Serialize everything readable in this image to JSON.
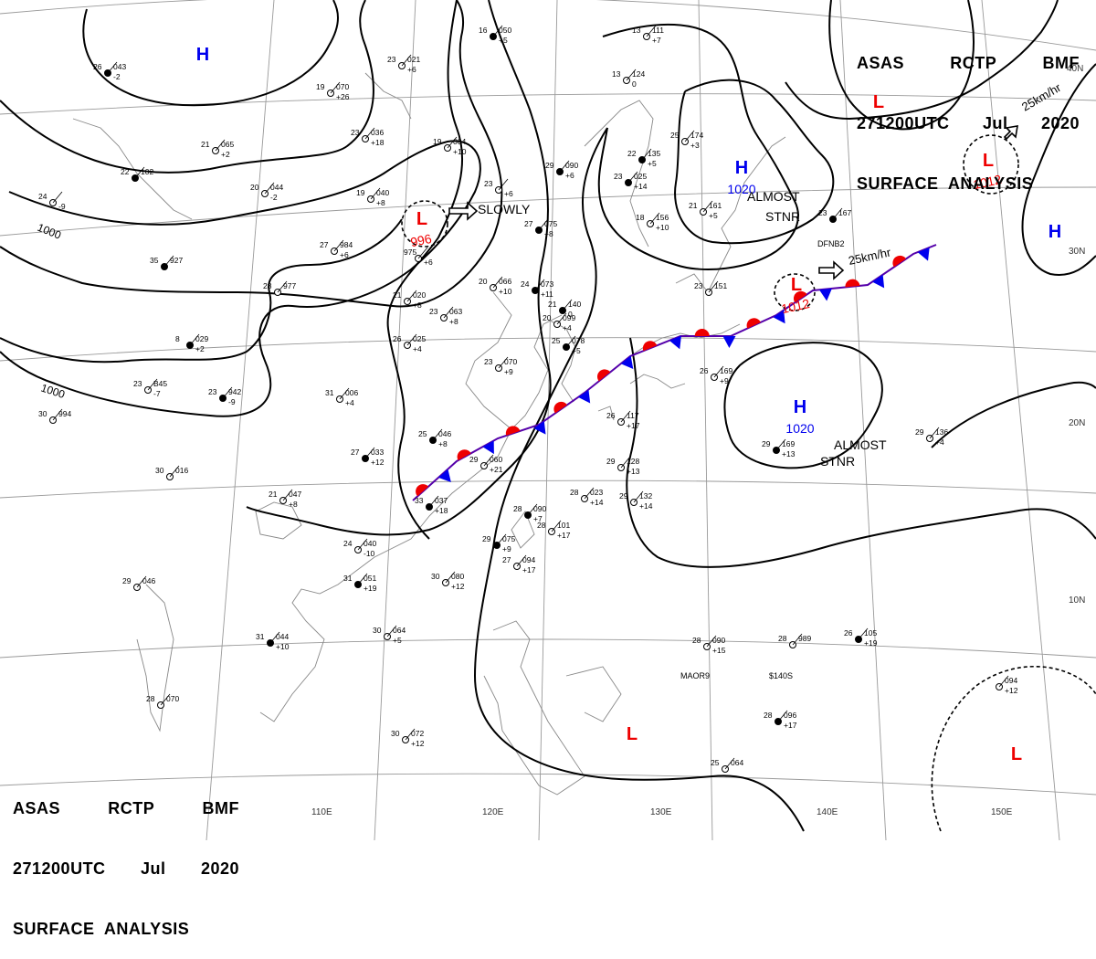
{
  "header_top": {
    "line1": [
      "ASAS",
      "RCTP",
      "BMF"
    ],
    "line2": [
      "271200UTC",
      "Jul",
      "2020"
    ],
    "line3": "SURFACE  ANALYSIS"
  },
  "header_bottom": {
    "line1": [
      "ASAS",
      "RCTP",
      "BMF"
    ],
    "line2": [
      "271200UTC",
      "Jul",
      "2020"
    ],
    "line3": "SURFACE  ANALYSIS"
  },
  "colors": {
    "high": "#0000ee",
    "low": "#ee0000",
    "isobar": "#000000",
    "grid": "#999999",
    "coast": "#888888"
  },
  "lon_labels": [
    "110E",
    "120E",
    "130E",
    "140E",
    "150E"
  ],
  "lat_labels": [
    "40N",
    "30N",
    "20N",
    "10N"
  ],
  "isobar_labels": [
    "1000",
    "1000"
  ],
  "centers": [
    {
      "type": "H",
      "pressure": ""
    },
    {
      "type": "L",
      "pressure": ""
    },
    {
      "type": "L",
      "pressure": "1012"
    },
    {
      "type": "L",
      "pressure": "996"
    },
    {
      "type": "H",
      "pressure": "1020"
    },
    {
      "type": "H",
      "pressure": ""
    },
    {
      "type": "L",
      "pressure": "1012"
    },
    {
      "type": "H",
      "pressure": "1020"
    },
    {
      "type": "L",
      "pressure": ""
    },
    {
      "type": "L",
      "pressure": ""
    }
  ],
  "annotations": {
    "slowly": "SLOWLY",
    "almost_stnr_1": [
      "ALMOST",
      "STNR"
    ],
    "almost_stnr_2": [
      "ALMOST",
      "STNR"
    ],
    "speed_1": "25km/hr",
    "speed_2": "25km/hr",
    "dfnb2": "DFNB2",
    "maor9": "MAOR9",
    "s140s": "$140S"
  },
  "stations": [
    {
      "t": "26",
      "p": "043",
      "c": "-2"
    },
    {
      "t": "19",
      "p": "070",
      "c": "+26"
    },
    {
      "t": "23",
      "p": "021",
      "c": "+6"
    },
    {
      "t": "16",
      "p": "050",
      "c": "+5"
    },
    {
      "t": "13",
      "p": "111",
      "c": "+7"
    },
    {
      "t": "21",
      "p": "065",
      "c": "+2"
    },
    {
      "t": "22",
      "p": "102",
      "c": ""
    },
    {
      "t": "23",
      "p": "036",
      "c": "+18"
    },
    {
      "t": "19",
      "p": "004",
      "c": "+10"
    },
    {
      "t": "29",
      "p": "090",
      "c": "+6"
    },
    {
      "t": "13",
      "p": "124",
      "c": "0"
    },
    {
      "t": "25",
      "p": "174",
      "c": "+3"
    },
    {
      "t": "22",
      "p": "135",
      "c": "+5"
    },
    {
      "t": "20",
      "p": "044",
      "c": "-2"
    },
    {
      "t": "19",
      "p": "040",
      "c": "+8"
    },
    {
      "t": "23",
      "p": "025",
      "c": "+14"
    },
    {
      "t": "23",
      "p": "",
      "c": "+6"
    },
    {
      "t": "24",
      "p": "",
      "c": "-9"
    },
    {
      "t": "27",
      "p": "075",
      "c": "+8"
    },
    {
      "t": "18",
      "p": "156",
      "c": "+10"
    },
    {
      "t": "21",
      "p": "161",
      "c": "+5"
    },
    {
      "t": "23",
      "p": "167",
      "c": ""
    },
    {
      "t": "27",
      "p": "984",
      "c": "+6"
    },
    {
      "t": "975",
      "p": "",
      "c": "+6"
    },
    {
      "t": "35",
      "p": "927",
      "c": ""
    },
    {
      "t": "28",
      "p": "977",
      "c": ""
    },
    {
      "t": "20",
      "p": "066",
      "c": "+10"
    },
    {
      "t": "24",
      "p": "073",
      "c": "+11"
    },
    {
      "t": "21",
      "p": "020",
      "c": "+8"
    },
    {
      "t": "23",
      "p": "063",
      "c": "+8"
    },
    {
      "t": "21",
      "p": "140",
      "c": "0"
    },
    {
      "t": "23",
      "p": "151",
      "c": ""
    },
    {
      "t": "20",
      "p": "099",
      "c": "+4"
    },
    {
      "t": "8",
      "p": "029",
      "c": "+2"
    },
    {
      "t": "26",
      "p": "025",
      "c": "+4"
    },
    {
      "t": "23",
      "p": "070",
      "c": "+9"
    },
    {
      "t": "25",
      "p": "078",
      "c": "+5"
    },
    {
      "t": "26",
      "p": "169",
      "c": "+9"
    },
    {
      "t": "23",
      "p": "B45",
      "c": "-7"
    },
    {
      "t": "23",
      "p": "942",
      "c": "-9"
    },
    {
      "t": "31",
      "p": "006",
      "c": "+4"
    },
    {
      "t": "30",
      "p": "994",
      "c": ""
    },
    {
      "t": "25",
      "p": "046",
      "c": "+8"
    },
    {
      "t": "26",
      "p": "117",
      "c": "+17"
    },
    {
      "t": "29",
      "p": "136",
      "c": "+4"
    },
    {
      "t": "27",
      "p": "033",
      "c": "+12"
    },
    {
      "t": "29",
      "p": "060",
      "c": "+21"
    },
    {
      "t": "29",
      "p": "128",
      "c": "+13"
    },
    {
      "t": "29",
      "p": "169",
      "c": "+13"
    },
    {
      "t": "30",
      "p": "016",
      "c": ""
    },
    {
      "t": "21",
      "p": "047",
      "c": "+8"
    },
    {
      "t": "33",
      "p": "037",
      "c": "+18"
    },
    {
      "t": "28",
      "p": "023",
      "c": "+14"
    },
    {
      "t": "29",
      "p": "132",
      "c": "+14"
    },
    {
      "t": "28",
      "p": "090",
      "c": "+7"
    },
    {
      "t": "28",
      "p": "101",
      "c": "+17"
    },
    {
      "t": "24",
      "p": "040",
      "c": "-10"
    },
    {
      "t": "29",
      "p": "075",
      "c": "+9"
    },
    {
      "t": "27",
      "p": "094",
      "c": "+17"
    },
    {
      "t": "29",
      "p": "046",
      "c": ""
    },
    {
      "t": "31",
      "p": "051",
      "c": "+19"
    },
    {
      "t": "30",
      "p": "080",
      "c": "+12"
    },
    {
      "t": "30",
      "p": "064",
      "c": "+5"
    },
    {
      "t": "31",
      "p": "044",
      "c": "+10"
    },
    {
      "t": "28",
      "p": "090",
      "c": "+15"
    },
    {
      "t": "28",
      "p": "989",
      "c": ""
    },
    {
      "t": "26",
      "p": "105",
      "c": "+19"
    },
    {
      "t": "28",
      "p": "070",
      "c": ""
    },
    {
      "t": "30",
      "p": "072",
      "c": "+12"
    },
    {
      "t": "28",
      "p": "096",
      "c": "+17"
    },
    {
      "t": "25",
      "p": "064",
      "c": ""
    },
    {
      "t": "",
      "p": "094",
      "c": "+12"
    }
  ]
}
